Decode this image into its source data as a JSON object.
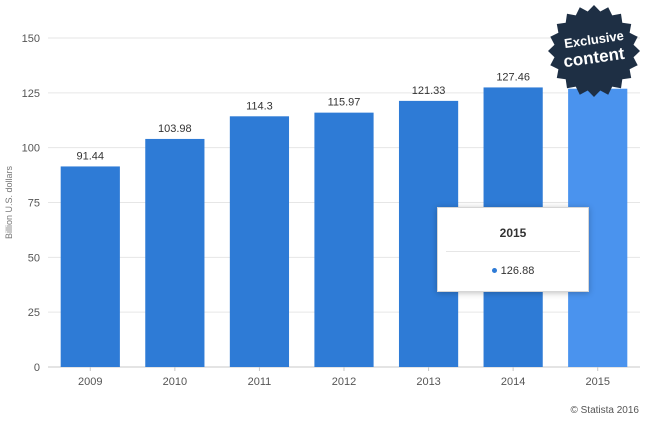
{
  "chart_data": {
    "type": "bar",
    "categories": [
      "2009",
      "2010",
      "2011",
      "2012",
      "2013",
      "2014",
      "2015"
    ],
    "values": [
      91.44,
      103.98,
      114.3,
      115.97,
      121.33,
      127.46,
      126.88
    ],
    "data_labels": [
      "91.44",
      "103.98",
      "114.3",
      "115.97",
      "121.33",
      "127.46",
      ""
    ],
    "ylabel": "Billion U.S. dollars",
    "ylim": [
      0,
      150
    ],
    "yticks": [
      "0",
      "25",
      "50",
      "75",
      "100",
      "125",
      "150"
    ],
    "grid": true,
    "highlighted_category": "2015",
    "colors": {
      "bar": "#2e7bd6",
      "highlight": "#4a93ee",
      "grid": "#e6e6e6",
      "axis_text": "#555555"
    }
  },
  "tooltip": {
    "title": "2015",
    "value": "126.88"
  },
  "badge": {
    "line1": "Exclusive",
    "line2": "content",
    "color": "#1e2f44"
  },
  "source": "© Statista 2016"
}
